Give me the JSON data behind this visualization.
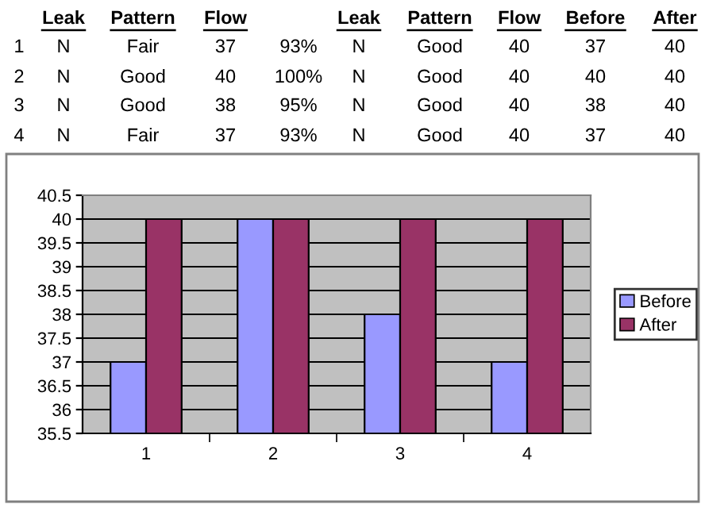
{
  "chart_data": {
    "type": "bar",
    "categories": [
      "1",
      "2",
      "3",
      "4"
    ],
    "series": [
      {
        "name": "Before",
        "color": "#9999ff",
        "values": [
          37,
          40,
          38,
          37
        ]
      },
      {
        "name": "After",
        "color": "#993366",
        "values": [
          40,
          40,
          40,
          40
        ]
      }
    ],
    "ylim": [
      35.5,
      40.5
    ],
    "yticks": [
      35.5,
      36,
      36.5,
      37,
      37.5,
      38,
      38.5,
      39,
      39.5,
      40,
      40.5
    ],
    "grid": "y",
    "legend": "right",
    "annotations": [
      "Leak",
      "Pattern",
      "Flow",
      "Leak",
      "Pattern",
      "Flow",
      "Before",
      "After",
      "1",
      "N",
      "Fair",
      "37",
      "93%",
      "N",
      "Good",
      "40",
      "37",
      "40",
      "2",
      "N",
      "Good",
      "40",
      "100%",
      "N",
      "Good",
      "40",
      "40",
      "40",
      "3",
      "N",
      "Good",
      "38",
      "95%",
      "N",
      "Good",
      "40",
      "38",
      "40",
      "4",
      "N",
      "Fair",
      "37",
      "93%",
      "N",
      "Good",
      "40",
      "37",
      "40"
    ]
  }
}
